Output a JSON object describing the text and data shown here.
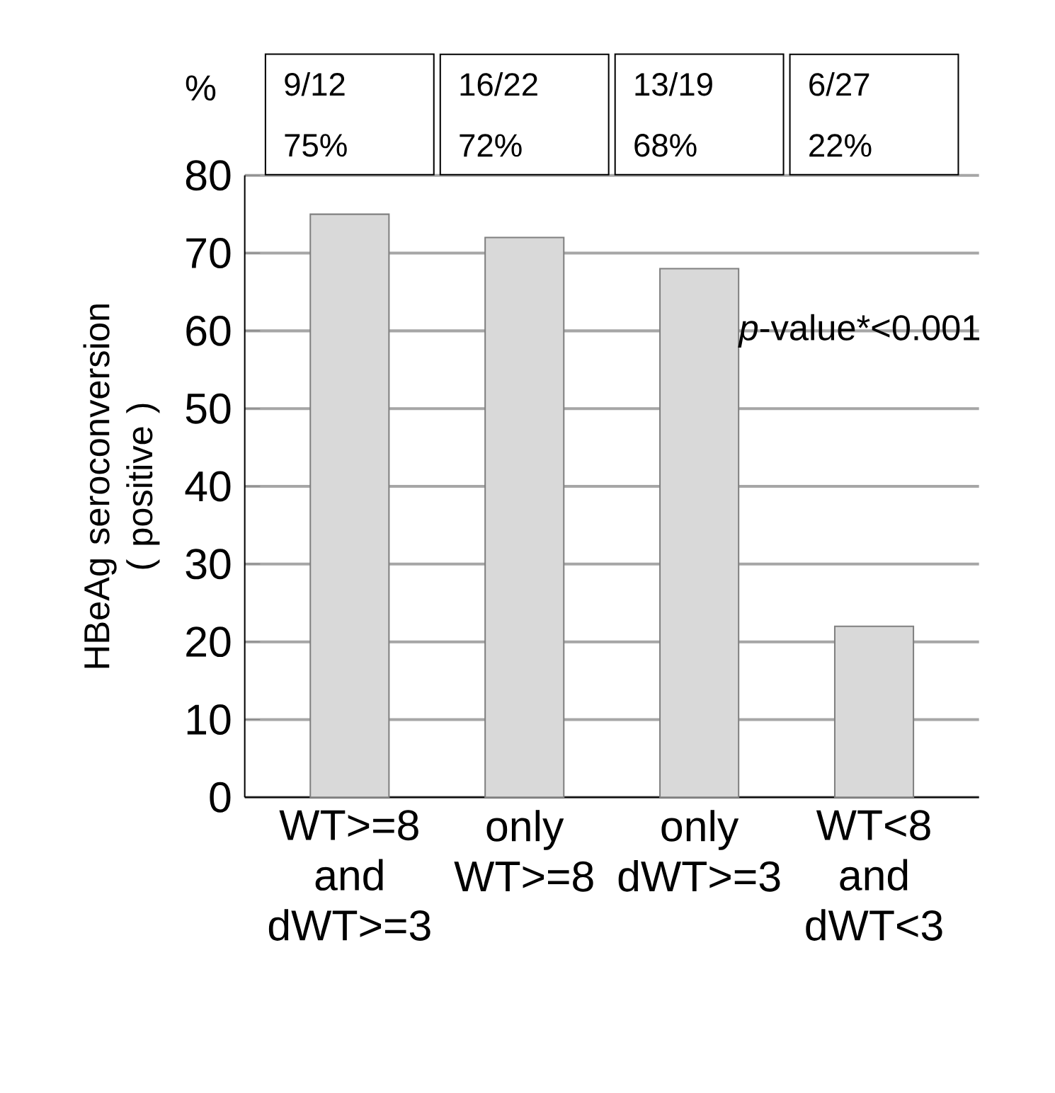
{
  "chart_data": {
    "type": "bar",
    "categories": [
      "WT>=8 and dWT>=3",
      "only WT>=8",
      "only dWT>=3",
      "WT<8 and dWT<3"
    ],
    "values": [
      75,
      72,
      68,
      22
    ],
    "color": "#d9d9d9",
    "ylabel": "HBeAg seroconversion ( positive )",
    "ylim": [
      0,
      80
    ],
    "yticks": [
      0,
      10,
      20,
      30,
      40,
      50,
      60,
      70,
      80
    ],
    "grid": "y",
    "annotations": [
      "%",
      "*p*-value*<0.001",
      "9/12",
      "75%",
      "16/22",
      "72%",
      "13/19",
      "68%",
      "6/27",
      "22%"
    ]
  }
}
